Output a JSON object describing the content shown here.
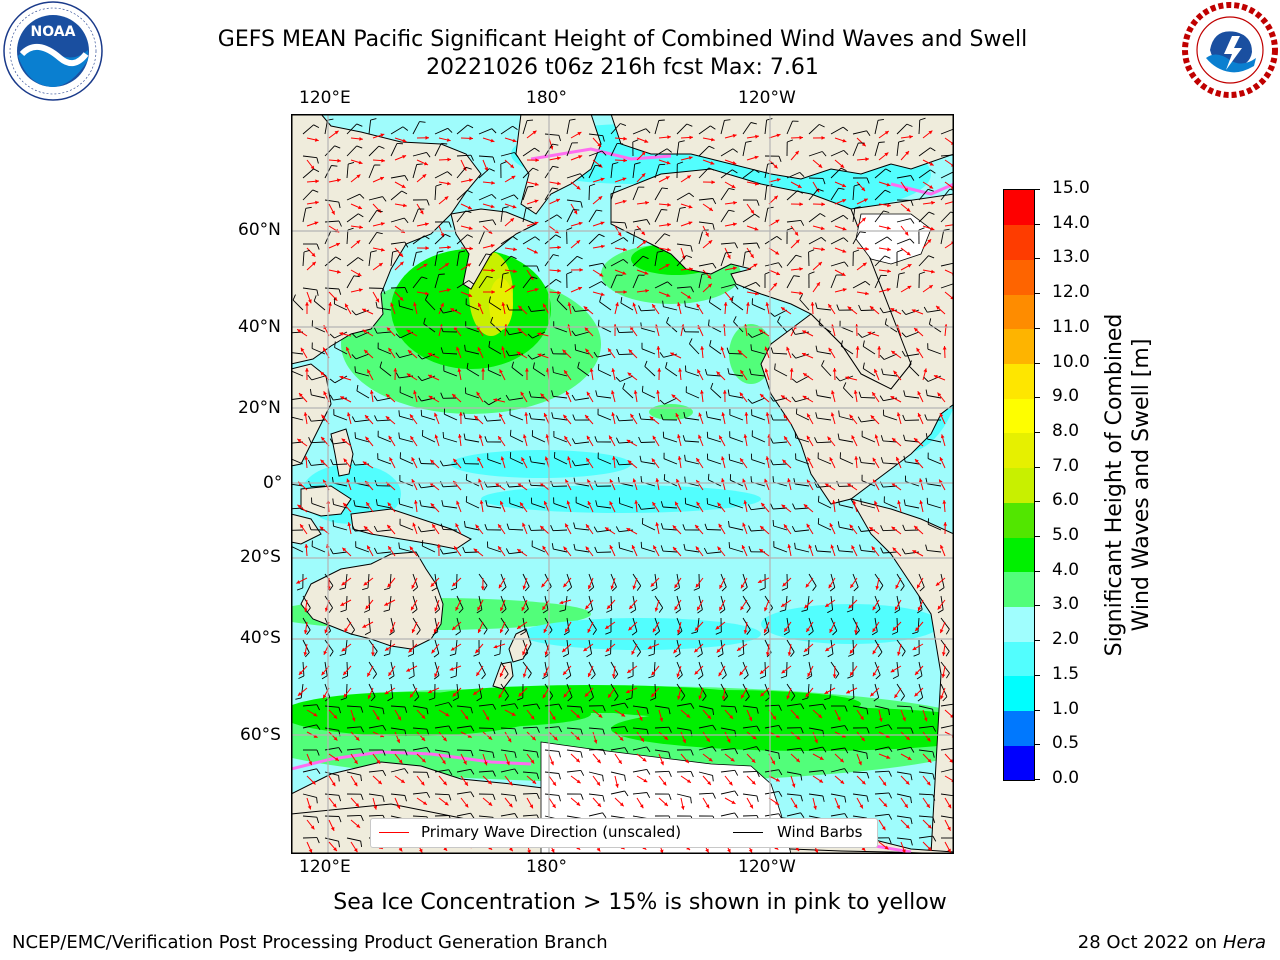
{
  "title": {
    "line1": "GEFS MEAN Pacific Significant Height of Combined Wind Waves and Swell",
    "line2": "20221026 t06z 216h fcst   Max: 7.61"
  },
  "logos": {
    "left_icon": "noaa-logo",
    "left_text": "NOAA",
    "left_ring_text": "NATIONAL OCEANIC AND ATMOSPHERIC ADMINISTRATION · U.S. DEPARTMENT OF COMMERCE",
    "right_icon": "nws-logo",
    "right_ring_text": "NATIONAL WEATHER SERVICE"
  },
  "map": {
    "top_lon_labels": [
      "120°E",
      "180°",
      "120°W"
    ],
    "bottom_lon_labels": [
      "120°E",
      "180°",
      "120°W"
    ],
    "lat_labels": [
      "60°N",
      "40°N",
      "20°N",
      "0°",
      "20°S",
      "40°S",
      "60°S"
    ],
    "colors": {
      "land": "#efecdc",
      "ocean_base": "#9ffcfc",
      "grid": "#b4b4b4",
      "wind": "#000000",
      "wave": "#ff0000"
    },
    "legend": {
      "wave_label": "Primary Wave Direction (unscaled)",
      "wind_label": "Wind Barbs",
      "wave_color": "#ff0000",
      "wind_color": "#000000"
    }
  },
  "colorbar": {
    "label_line1": "Significant Height of Combined",
    "label_line2": "Wind Waves and Swell [m]",
    "ticks": [
      "0.0",
      "0.5",
      "1.0",
      "1.5",
      "2.0",
      "3.0",
      "4.0",
      "5.0",
      "6.0",
      "7.0",
      "8.0",
      "9.0",
      "10.0",
      "11.0",
      "12.0",
      "13.0",
      "14.0",
      "15.0"
    ],
    "colors": [
      "#0000fe",
      "#0078fe",
      "#00fefe",
      "#52fefe",
      "#a0fefe",
      "#52fe7a",
      "#00f000",
      "#52e600",
      "#c8f000",
      "#e6f000",
      "#fefe00",
      "#fee600",
      "#feb400",
      "#fe8c00",
      "#fe6400",
      "#fe3c00",
      "#fe0000"
    ]
  },
  "bottom_note": "Sea Ice Concentration > 15% is shown in pink to yellow",
  "footer": {
    "left": "NCEP/EMC/Verification Post Processing Product Generation Branch",
    "right_date": "28 Oct 2022 on ",
    "right_host": "Hera"
  }
}
